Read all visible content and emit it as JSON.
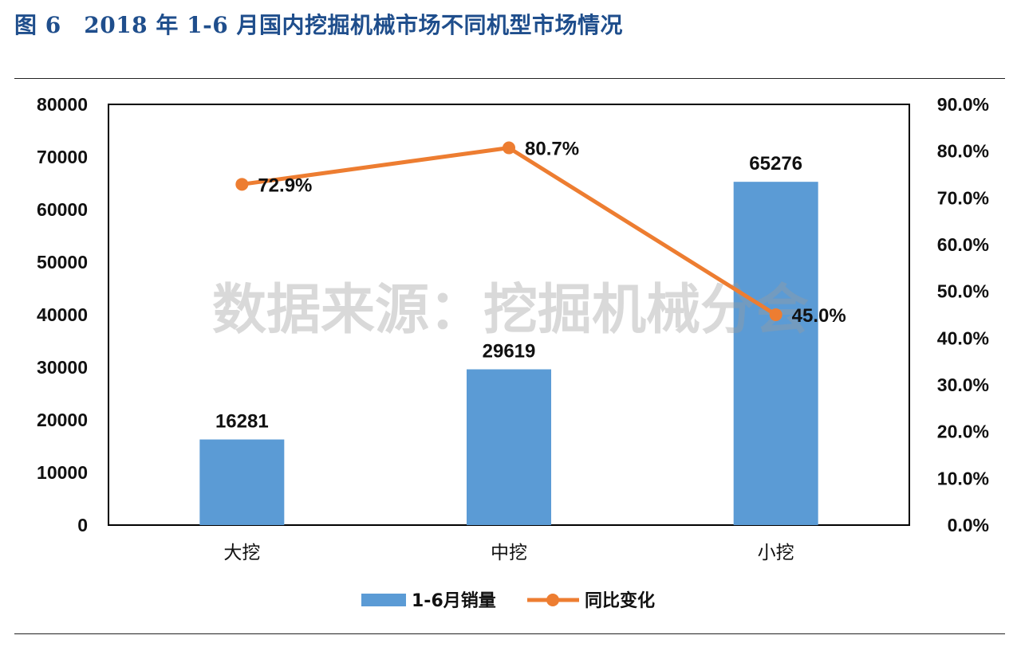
{
  "figure": {
    "title": "图 6　2018 年 1-6 月国内挖掘机械市场不同机型市场情况"
  },
  "watermark": "数据来源：挖掘机械分会",
  "colors": {
    "bar": "#5b9bd5",
    "line": "#ed7d31",
    "text": "#111111",
    "title": "#1f4e8c"
  },
  "chart_data": {
    "type": "bar",
    "categories": [
      "大挖",
      "中挖",
      "小挖"
    ],
    "series": [
      {
        "name": "1-6月销量",
        "type": "bar",
        "axis": "left",
        "values": [
          16281,
          29619,
          65276
        ],
        "labels": [
          "16281",
          "29619",
          "65276"
        ]
      },
      {
        "name": "同比变化",
        "type": "line",
        "axis": "right",
        "values": [
          72.9,
          80.7,
          45.0
        ],
        "labels": [
          "72.9%",
          "80.7%",
          "45.0%"
        ]
      }
    ],
    "y_left": {
      "ylim": [
        0,
        80000
      ],
      "ticks": [
        "0",
        "10000",
        "20000",
        "30000",
        "40000",
        "50000",
        "60000",
        "70000",
        "80000"
      ]
    },
    "y_right": {
      "ylim": [
        0,
        90
      ],
      "ticks": [
        "0.0%",
        "10.0%",
        "20.0%",
        "30.0%",
        "40.0%",
        "50.0%",
        "60.0%",
        "70.0%",
        "80.0%",
        "90.0%"
      ]
    },
    "legend": "bottom",
    "grid": false
  }
}
